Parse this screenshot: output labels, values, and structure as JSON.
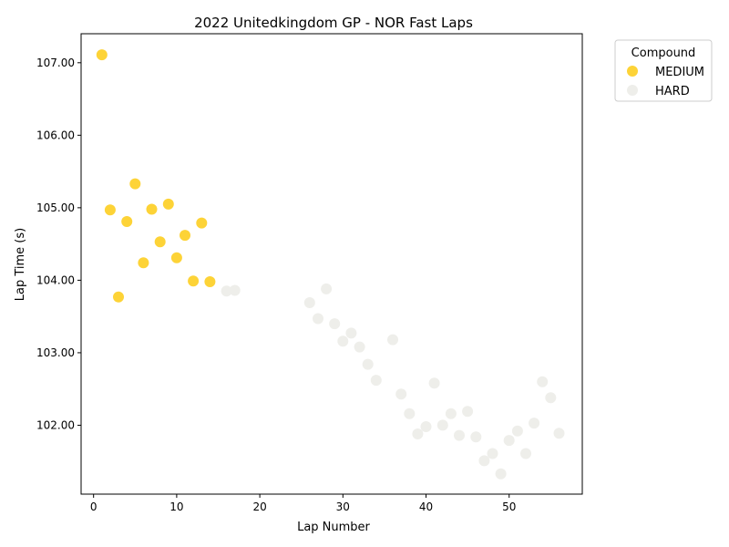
{
  "chart_data": {
    "type": "scatter",
    "title": "2022 Unitedkingdom GP - NOR Fast Laps",
    "xlabel": "Lap Number",
    "ylabel": "Lap Time (s)",
    "xlim": [
      -1.5,
      58.8
    ],
    "ylim": [
      101.05,
      107.4
    ],
    "xticks": [
      0,
      10,
      20,
      30,
      40,
      50
    ],
    "yticks": [
      102.0,
      103.0,
      104.0,
      105.0,
      106.0,
      107.0
    ],
    "ytick_labels": [
      "102.00",
      "103.00",
      "104.00",
      "105.00",
      "106.00",
      "107.00"
    ],
    "grid": false,
    "legend": {
      "title": "Compound",
      "position": "outside-top-right"
    },
    "series": [
      {
        "name": "MEDIUM",
        "color": "#fdd337",
        "points": [
          [
            1,
            107.11
          ],
          [
            2,
            104.97
          ],
          [
            3,
            103.77
          ],
          [
            4,
            104.81
          ],
          [
            5,
            105.33
          ],
          [
            6,
            104.24
          ],
          [
            7,
            104.98
          ],
          [
            8,
            104.53
          ],
          [
            9,
            105.05
          ],
          [
            10,
            104.31
          ],
          [
            11,
            104.62
          ],
          [
            12,
            103.99
          ],
          [
            13,
            104.79
          ],
          [
            14,
            103.98
          ]
        ]
      },
      {
        "name": "HARD",
        "color": "#eeeeea",
        "points": [
          [
            16,
            103.85
          ],
          [
            17,
            103.86
          ],
          [
            26,
            103.69
          ],
          [
            27,
            103.47
          ],
          [
            28,
            103.88
          ],
          [
            29,
            103.4
          ],
          [
            30,
            103.16
          ],
          [
            31,
            103.27
          ],
          [
            32,
            103.08
          ],
          [
            33,
            102.84
          ],
          [
            34,
            102.62
          ],
          [
            36,
            103.18
          ],
          [
            37,
            102.43
          ],
          [
            38,
            102.16
          ],
          [
            39,
            101.88
          ],
          [
            40,
            101.98
          ],
          [
            41,
            102.58
          ],
          [
            42,
            102.0
          ],
          [
            43,
            102.16
          ],
          [
            44,
            101.86
          ],
          [
            45,
            102.19
          ],
          [
            46,
            101.84
          ],
          [
            47,
            101.51
          ],
          [
            48,
            101.61
          ],
          [
            49,
            101.33
          ],
          [
            50,
            101.79
          ],
          [
            51,
            101.92
          ],
          [
            52,
            101.61
          ],
          [
            53,
            102.03
          ],
          [
            54,
            102.6
          ],
          [
            55,
            102.38
          ],
          [
            56,
            101.89
          ]
        ]
      }
    ]
  }
}
